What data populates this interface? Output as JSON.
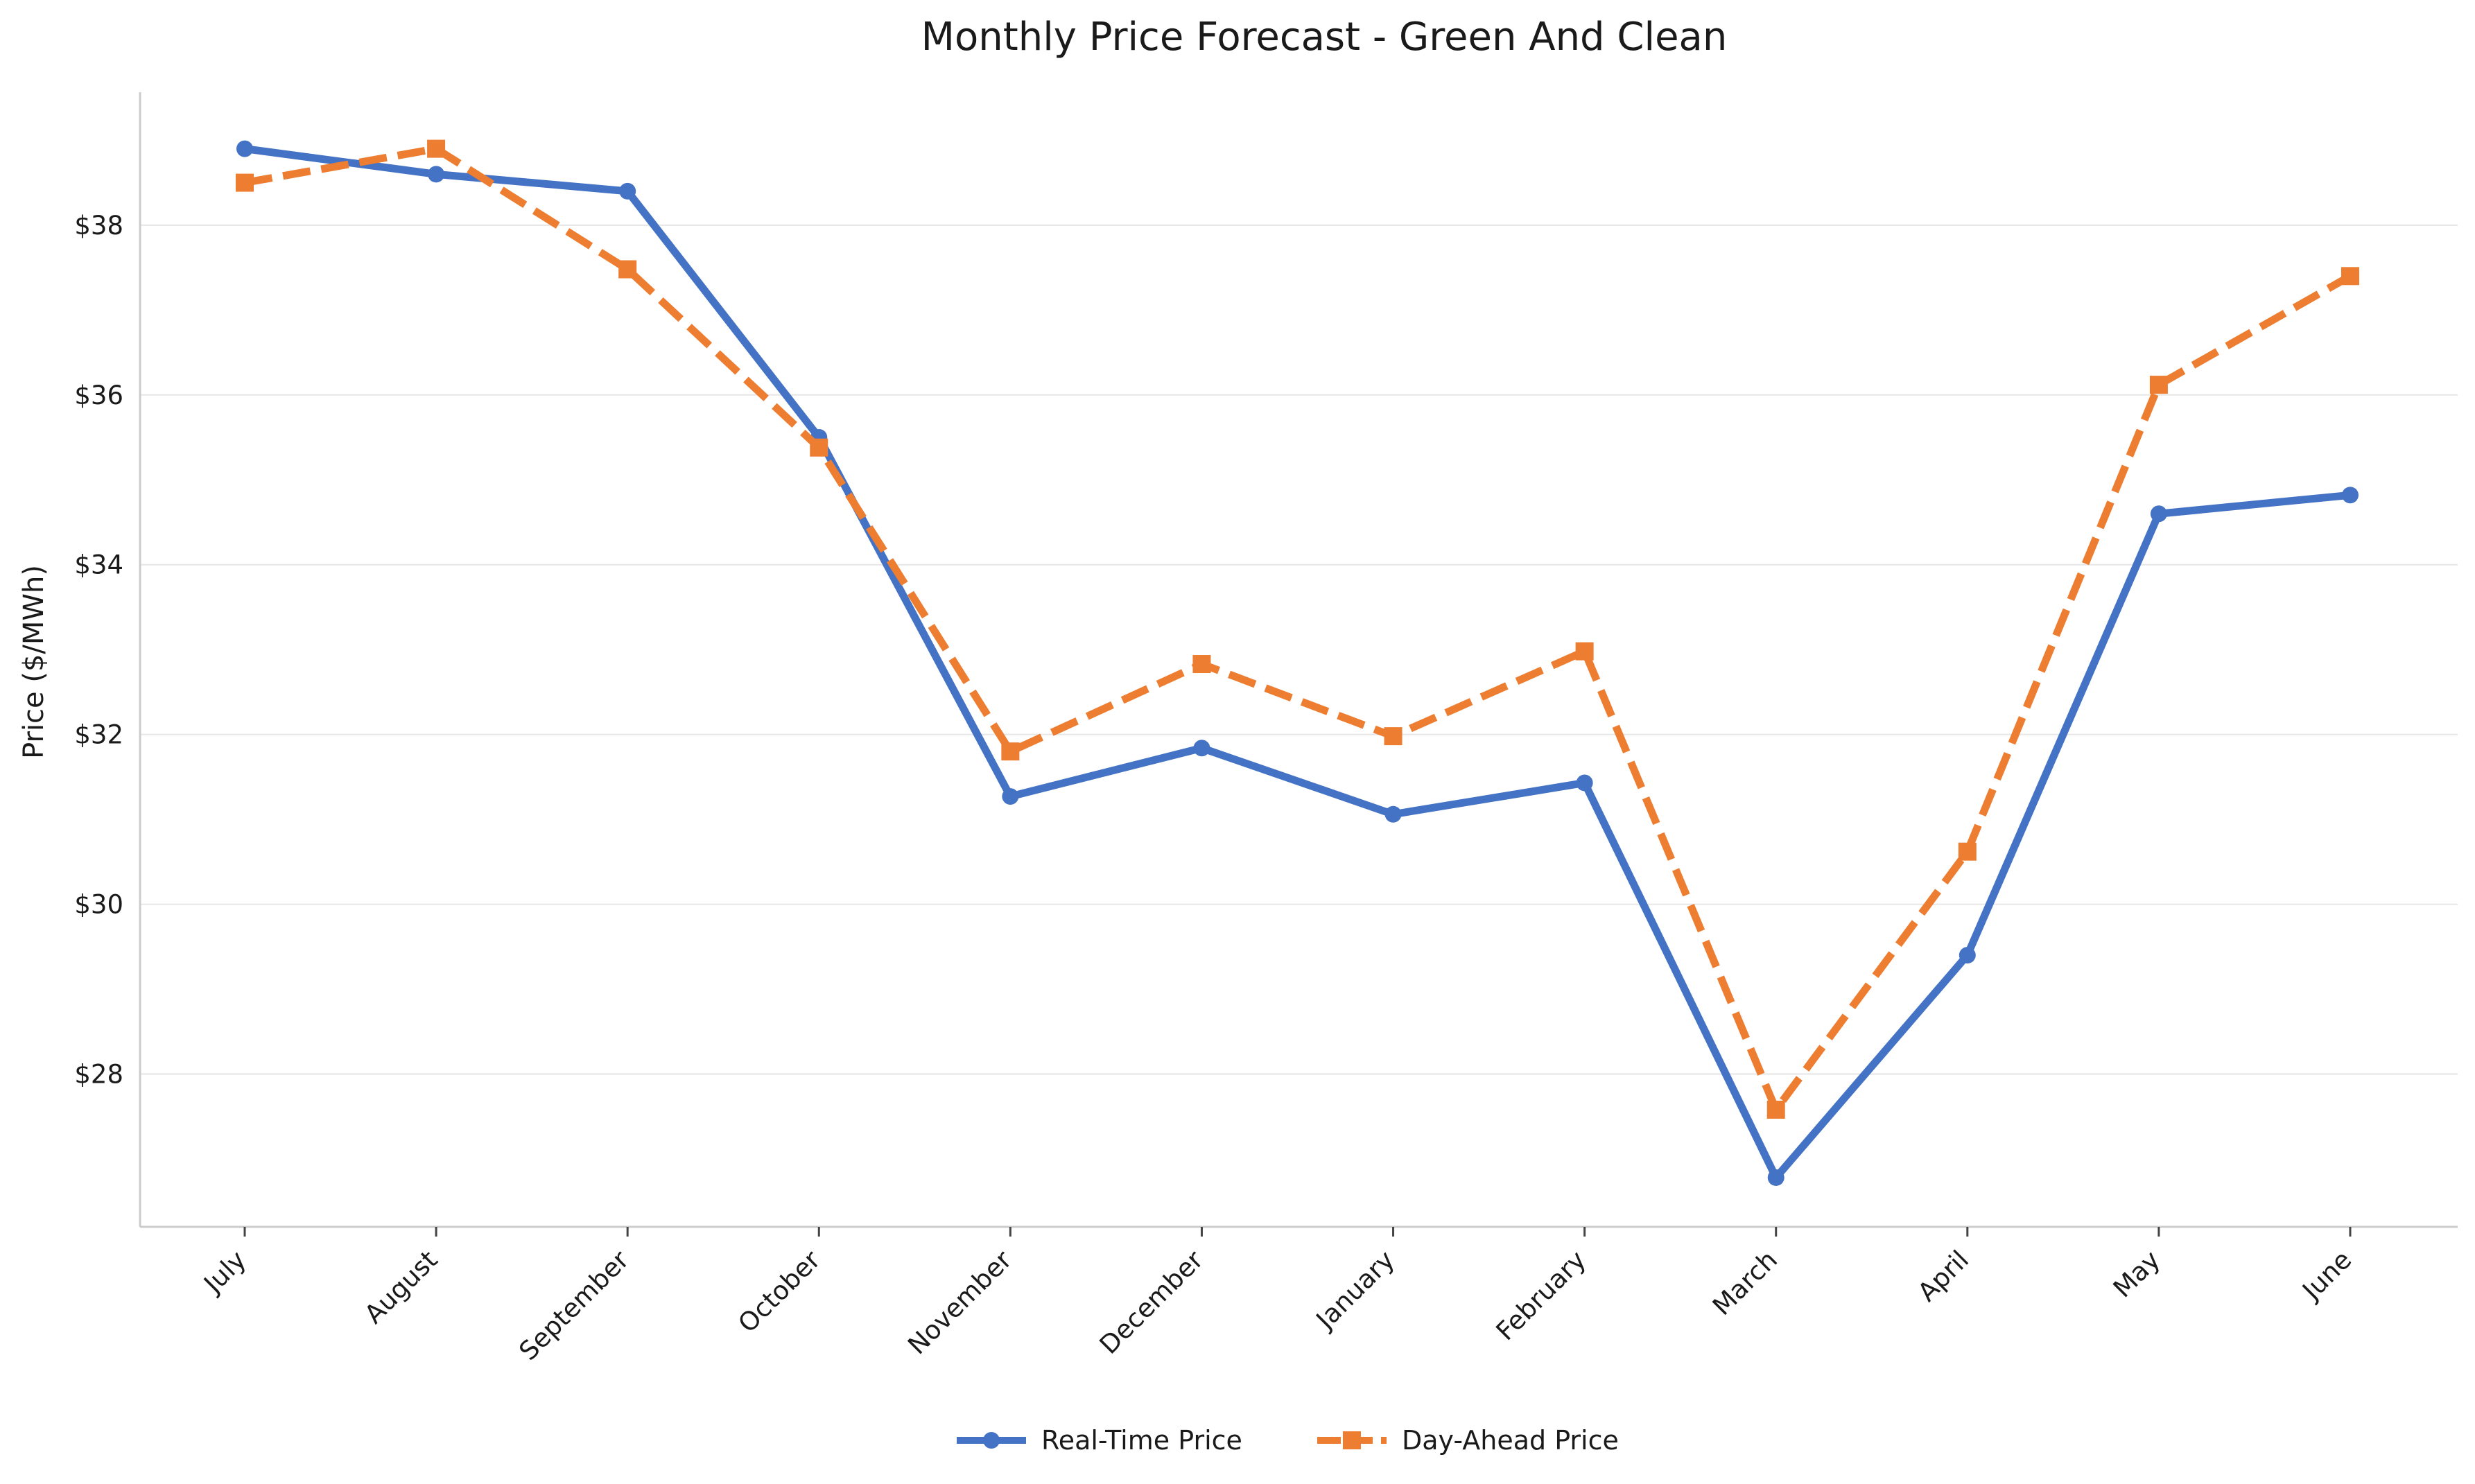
{
  "colors": {
    "real_time": "#4472C4",
    "day_ahead": "#ED7D31",
    "grid": "#e6e6e6",
    "axis": "#cccccc"
  },
  "chart_data": {
    "type": "line",
    "title": "Monthly Price Forecast - Green And Clean",
    "xlabel": "",
    "ylabel": "Price ($/MWh)",
    "categories": [
      "July",
      "August",
      "September",
      "October",
      "November",
      "December",
      "January",
      "February",
      "March",
      "April",
      "May",
      "June"
    ],
    "ylim": [
      26.2,
      39.55
    ],
    "y_ticks": [
      28,
      30,
      32,
      34,
      36,
      38
    ],
    "y_tick_labels": [
      "$28",
      "$30",
      "$32",
      "$34",
      "$36",
      "$38"
    ],
    "grid": "horizontal",
    "legend_position": "bottom-center",
    "series": [
      {
        "name": "Real-Time Price",
        "style": "solid",
        "marker": "circle",
        "values": [
          38.9,
          38.6,
          38.4,
          35.5,
          31.27,
          31.84,
          31.06,
          31.43,
          26.78,
          29.4,
          34.6,
          34.82
        ]
      },
      {
        "name": "Day-Ahead Price",
        "style": "dashed",
        "marker": "square",
        "values": [
          38.5,
          38.9,
          37.48,
          35.38,
          31.8,
          32.83,
          31.98,
          32.98,
          27.58,
          30.62,
          36.12,
          37.4
        ]
      }
    ]
  }
}
